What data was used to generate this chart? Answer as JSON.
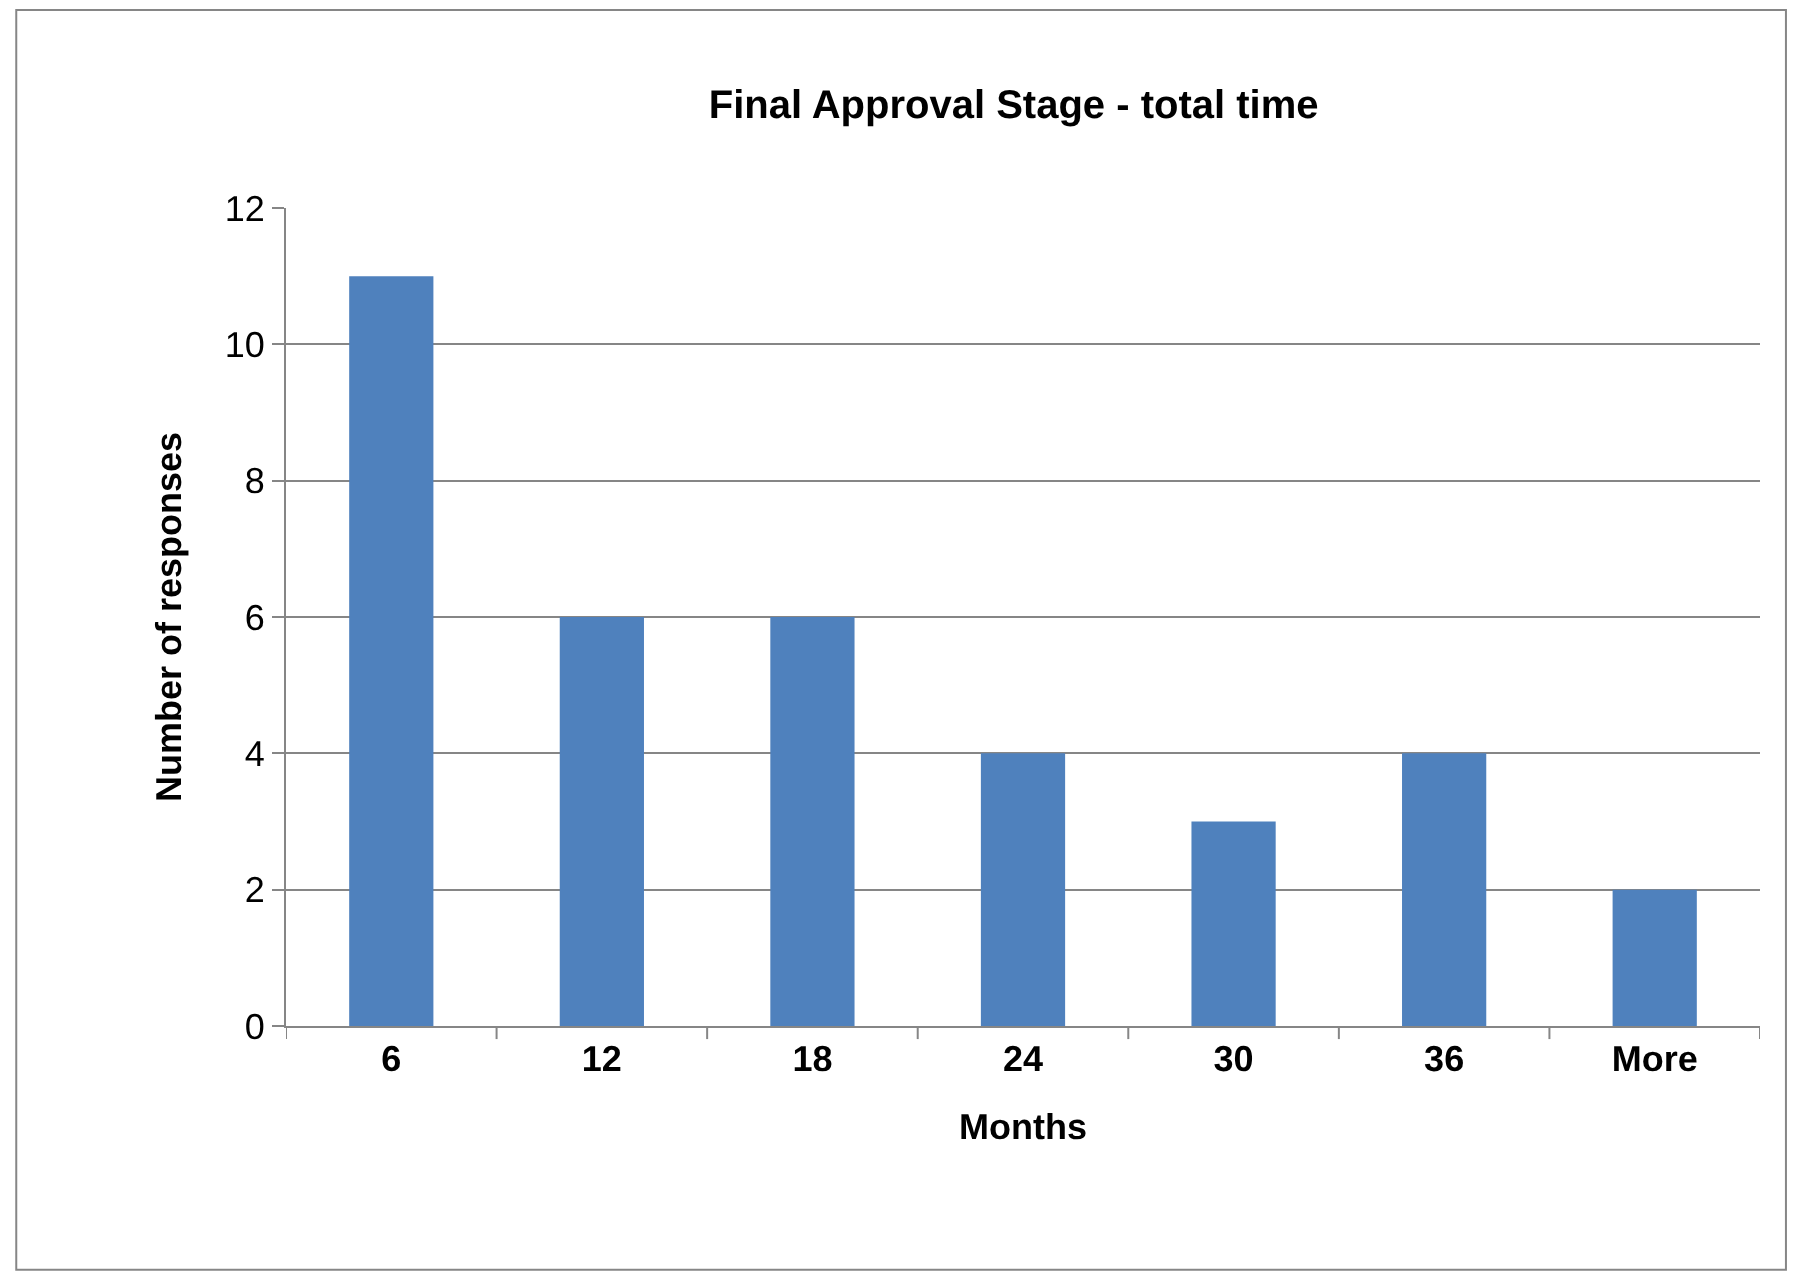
{
  "chart_data": {
    "type": "bar",
    "title": "Final Approval Stage - total time",
    "xlabel": "Months",
    "ylabel": "Number of responses",
    "categories": [
      "6",
      "12",
      "18",
      "24",
      "30",
      "36",
      "More"
    ],
    "values": [
      11,
      6,
      6,
      4,
      3,
      4,
      2
    ],
    "color": "#4f81bd",
    "ylim": [
      0,
      12
    ],
    "yticks": [
      0,
      2,
      4,
      6,
      8,
      10,
      12
    ],
    "grid": "y"
  }
}
